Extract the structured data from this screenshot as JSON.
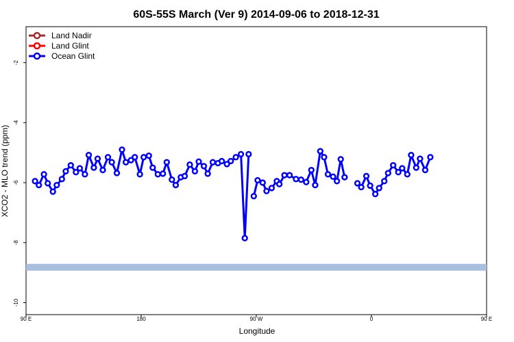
{
  "chart_data": {
    "type": "line",
    "title": "60S-55S March (Ver 9)   2014-09-06 to 2018-12-31",
    "xlabel": "Longitude",
    "ylabel": "XCO2 - MLO trend (ppm)",
    "xlim": [
      90,
      450
    ],
    "ylim": [
      -10.4,
      -0.8
    ],
    "x_ticks": [
      {
        "value": 90,
        "label": "90 E"
      },
      {
        "value": 180,
        "label": "180"
      },
      {
        "value": 270,
        "label": "90 W"
      },
      {
        "value": 360,
        "label": "0"
      },
      {
        "value": 450,
        "label": "90 E"
      },
      {
        "value": 540,
        "label": "180"
      }
    ],
    "x_ticks_note": "",
    "y_ticks": [
      -2,
      -4,
      -6,
      -8,
      -10
    ],
    "grid": false,
    "legend": {
      "placement": "top-left",
      "entries": [
        {
          "name": "Land Nadir",
          "color": "#a52a2a"
        },
        {
          "name": "Land Glint",
          "color": "#ff0000"
        },
        {
          "name": "Ocean Glint",
          "color": "#0000ff"
        }
      ]
    },
    "band": {
      "y": -8.82,
      "color": "#a8bfe0"
    },
    "series": [
      {
        "name": "Ocean Glint",
        "color": "#0000ff",
        "segments": [
          [
            [
              97,
              -5.95
            ],
            [
              100,
              -6.08
            ],
            [
              104,
              -5.72
            ],
            [
              107,
              -6.02
            ],
            [
              111,
              -6.3
            ],
            [
              114,
              -6.08
            ],
            [
              118,
              -5.88
            ],
            [
              121,
              -5.62
            ],
            [
              125,
              -5.42
            ],
            [
              129,
              -5.65
            ],
            [
              132,
              -5.52
            ],
            [
              136,
              -5.72
            ],
            [
              139,
              -5.08
            ],
            [
              143,
              -5.5
            ],
            [
              146,
              -5.2
            ],
            [
              150,
              -5.58
            ],
            [
              154,
              -5.15
            ],
            [
              157,
              -5.32
            ],
            [
              161,
              -5.68
            ],
            [
              165,
              -4.9
            ],
            [
              168,
              -5.32
            ],
            [
              172,
              -5.25
            ],
            [
              175,
              -5.15
            ],
            [
              179,
              -5.72
            ],
            [
              182,
              -5.15
            ],
            [
              186,
              -5.1
            ],
            [
              189,
              -5.5
            ],
            [
              193,
              -5.72
            ],
            [
              197,
              -5.7
            ],
            [
              200,
              -5.32
            ],
            [
              204,
              -5.9
            ],
            [
              207,
              -6.08
            ],
            [
              211,
              -5.82
            ],
            [
              214,
              -5.78
            ],
            [
              218,
              -5.4
            ],
            [
              222,
              -5.62
            ],
            [
              225,
              -5.3
            ],
            [
              229,
              -5.45
            ],
            [
              232,
              -5.7
            ],
            [
              236,
              -5.32
            ],
            [
              240,
              -5.35
            ],
            [
              243,
              -5.28
            ],
            [
              247,
              -5.38
            ],
            [
              250,
              -5.28
            ],
            [
              254,
              -5.15
            ],
            [
              258,
              -5.05
            ],
            [
              261,
              -7.85
            ],
            [
              264,
              -5.05
            ]
          ],
          [
            [
              268,
              -6.45
            ],
            [
              271,
              -5.92
            ],
            [
              275,
              -6.0
            ],
            [
              278,
              -6.28
            ],
            [
              282,
              -6.18
            ],
            [
              286,
              -5.95
            ],
            [
              288,
              -6.05
            ],
            [
              292,
              -5.75
            ],
            [
              296,
              -5.75
            ],
            [
              301,
              -5.88
            ],
            [
              305,
              -5.9
            ],
            [
              309,
              -5.98
            ],
            [
              313,
              -5.58
            ],
            [
              316,
              -6.08
            ],
            [
              320,
              -4.95
            ],
            [
              323,
              -5.15
            ],
            [
              326,
              -5.72
            ],
            [
              330,
              -5.8
            ],
            [
              333,
              -5.95
            ],
            [
              336,
              -5.22
            ],
            [
              339,
              -5.82
            ]
          ],
          [
            [
              349,
              -6.02
            ],
            [
              352,
              -6.15
            ],
            [
              356,
              -5.78
            ],
            [
              359,
              -6.1
            ],
            [
              363,
              -6.38
            ],
            [
              366,
              -6.18
            ],
            [
              370,
              -5.95
            ],
            [
              373,
              -5.68
            ],
            [
              377,
              -5.42
            ],
            [
              381,
              -5.65
            ],
            [
              384,
              -5.52
            ],
            [
              388,
              -5.72
            ],
            [
              391,
              -5.08
            ],
            [
              395,
              -5.5
            ],
            [
              398,
              -5.2
            ],
            [
              402,
              -5.58
            ],
            [
              406,
              -5.15
            ]
          ]
        ]
      }
    ]
  }
}
